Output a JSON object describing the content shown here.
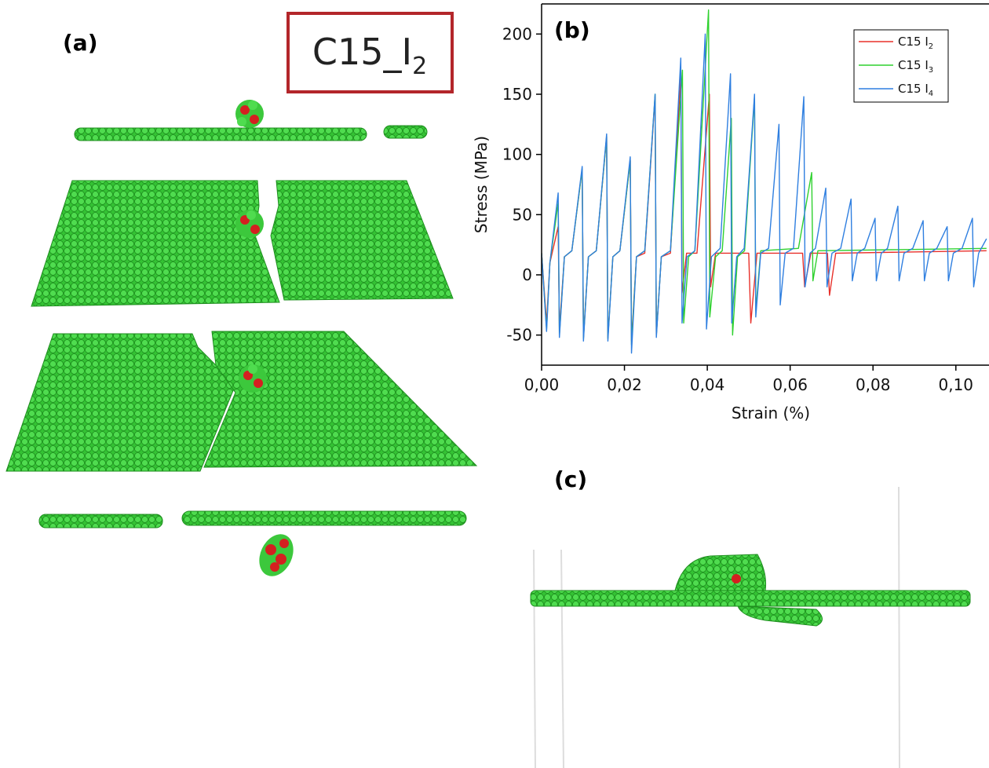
{
  "panel_labels": {
    "a": "(a)",
    "b": "(b)",
    "c": "(c)"
  },
  "config_label": {
    "text": "C15_I",
    "subscript": "2"
  },
  "chart_data": {
    "type": "line",
    "xlabel": "Strain (%)",
    "ylabel": "Stress (MPa)",
    "xlim": [
      0,
      0.108
    ],
    "ylim": [
      -75,
      225
    ],
    "xticks": [
      {
        "value": 0,
        "label": "0,00"
      },
      {
        "value": 0.02,
        "label": "0,02"
      },
      {
        "value": 0.04,
        "label": "0,04"
      },
      {
        "value": 0.06,
        "label": "0,06"
      },
      {
        "value": 0.08,
        "label": "0,08"
      },
      {
        "value": 0.1,
        "label": "0,10"
      }
    ],
    "yticks": [
      -50,
      0,
      50,
      100,
      150,
      200
    ],
    "legend": "upper right",
    "series": [
      {
        "name": "C15 I2",
        "color": "#e8302a",
        "x": [
          0,
          0.0012,
          0.002,
          0.004,
          0.0043,
          0.0055,
          0.0073,
          0.0098,
          0.0101,
          0.0113,
          0.0132,
          0.0157,
          0.016,
          0.0172,
          0.0189,
          0.0214,
          0.0217,
          0.0229,
          0.0249,
          0.0274,
          0.0277,
          0.0289,
          0.0311,
          0.0336,
          0.0339,
          0.035,
          0.0375,
          0.0405,
          0.0408,
          0.042,
          0.05,
          0.0505,
          0.052,
          0.063,
          0.0635,
          0.065,
          0.069,
          0.0695,
          0.071,
          0.1074
        ],
        "values": [
          18,
          -40,
          10,
          40,
          -45,
          15,
          20,
          88,
          -52,
          15,
          20,
          115,
          -52,
          15,
          20,
          95,
          -55,
          15,
          18,
          148,
          -50,
          15,
          18,
          165,
          -15,
          18,
          18,
          150,
          -10,
          18,
          18,
          -40,
          18,
          18,
          -10,
          18,
          18,
          -17,
          18,
          20
        ]
      },
      {
        "name": "C15 I3",
        "color": "#2fd12f",
        "x": [
          0,
          0.0012,
          0.002,
          0.004,
          0.0043,
          0.0055,
          0.0073,
          0.0098,
          0.0101,
          0.0113,
          0.0132,
          0.0157,
          0.016,
          0.0172,
          0.0189,
          0.0214,
          0.0217,
          0.0229,
          0.0249,
          0.0274,
          0.0277,
          0.0289,
          0.0311,
          0.034,
          0.0343,
          0.0355,
          0.037,
          0.0403,
          0.0406,
          0.042,
          0.0436,
          0.0458,
          0.0461,
          0.0473,
          0.049,
          0.0514,
          0.0517,
          0.0529,
          0.062,
          0.0652,
          0.0655,
          0.0667,
          0.1074
        ],
        "values": [
          18,
          -45,
          10,
          60,
          -50,
          15,
          20,
          88,
          -53,
          15,
          20,
          115,
          -53,
          15,
          20,
          95,
          -58,
          15,
          20,
          150,
          -50,
          15,
          20,
          170,
          -40,
          15,
          20,
          220,
          -35,
          15,
          20,
          130,
          -50,
          15,
          20,
          148,
          -30,
          20,
          22,
          85,
          -5,
          20,
          22
        ]
      },
      {
        "name": "C15 I4",
        "color": "#2f7fe0",
        "x": [
          0,
          0.0012,
          0.002,
          0.004,
          0.0043,
          0.0055,
          0.0073,
          0.0098,
          0.0101,
          0.0113,
          0.0132,
          0.0157,
          0.016,
          0.0172,
          0.0189,
          0.0214,
          0.0217,
          0.0229,
          0.0249,
          0.0274,
          0.0277,
          0.0289,
          0.0311,
          0.0336,
          0.0339,
          0.0351,
          0.037,
          0.0395,
          0.0398,
          0.041,
          0.0431,
          0.0456,
          0.0459,
          0.0471,
          0.0489,
          0.0514,
          0.0517,
          0.0529,
          0.0548,
          0.0573,
          0.0576,
          0.0588,
          0.0608,
          0.0633,
          0.0636,
          0.0648,
          0.0661,
          0.0686,
          0.0689,
          0.0701,
          0.0722,
          0.0747,
          0.075,
          0.0762,
          0.078,
          0.0805,
          0.0808,
          0.082,
          0.0835,
          0.086,
          0.0863,
          0.0875,
          0.0896,
          0.0921,
          0.0924,
          0.0936,
          0.0954,
          0.0979,
          0.0982,
          0.0994,
          0.1015,
          0.104,
          0.1043,
          0.1055,
          0.1074
        ],
        "values": [
          18,
          -47,
          10,
          68,
          -52,
          15,
          20,
          90,
          -55,
          15,
          20,
          117,
          -55,
          15,
          20,
          98,
          -65,
          15,
          20,
          150,
          -52,
          15,
          20,
          180,
          -40,
          15,
          20,
          200,
          -45,
          15,
          22,
          167,
          -40,
          15,
          22,
          150,
          -35,
          18,
          22,
          125,
          -25,
          18,
          22,
          148,
          -10,
          18,
          22,
          72,
          -10,
          18,
          22,
          63,
          -5,
          18,
          22,
          47,
          -5,
          18,
          22,
          57,
          -5,
          18,
          22,
          45,
          -5,
          18,
          22,
          40,
          -5,
          18,
          22,
          47,
          -10,
          18,
          30
        ]
      }
    ]
  }
}
